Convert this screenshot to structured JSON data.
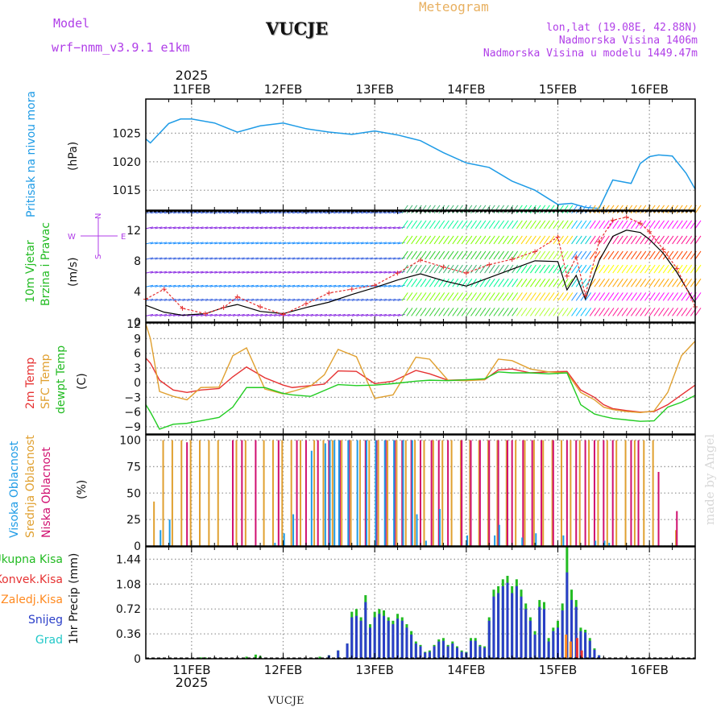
{
  "header": {
    "model_label": "Model",
    "model_name": "wrf−nmm_v3.9.1  e1km",
    "station": "VUCJE",
    "product": "Meteogram",
    "coords": "lon,lat (19.08E, 42.88N)",
    "elevation": "Nadmorska Visina 1406m",
    "model_elevation": "Nadmorska Visina u modelu 1449.47m",
    "footer_station": "VUCJE",
    "watermark": "made by Angel"
  },
  "time_axis": {
    "year": "2025",
    "day_labels": [
      "11FEB",
      "12FEB",
      "13FEB",
      "14FEB",
      "15FEB",
      "16FEB"
    ]
  },
  "panels": {
    "pressure": {
      "ylabel_name": "Pritisak na nivou mora",
      "unit": "(hPa)",
      "ticks": [
        "1015",
        "1020",
        "1025"
      ]
    },
    "wind": {
      "ylabel_name1": "10m Vjetar",
      "ylabel_name2": "Brzina i Pravac",
      "unit": "(m/s)",
      "ticks": [
        "0",
        "4",
        "8",
        "12"
      ],
      "compass_n": "N",
      "compass_s": "S",
      "compass_w": "W",
      "compass_e": "E"
    },
    "temp": {
      "label_2m": "2m Temp",
      "label_sfc": "SFC Temp",
      "label_dewpt": "dewpt Temp",
      "unit": "(C)",
      "ticks": [
        "12",
        "9",
        "6",
        "3",
        "0",
        "−3",
        "−6",
        "−9"
      ]
    },
    "cloud": {
      "label_high": "Visoka Oblacnost",
      "label_mid": "Srednja Oblacnost",
      "label_low": "Niska Oblacnost",
      "unit": "(%)",
      "ticks": [
        "0",
        "25",
        "50",
        "75",
        "100"
      ]
    },
    "precip": {
      "label_total": "Ukupna Kisa",
      "label_conv": "Konvek.Kisa",
      "label_frz": "Zaledj.Kisa",
      "label_snow": "Snijeg",
      "label_hail": "Grad",
      "ylabel": "1hr Precip (mm)",
      "ticks": [
        "0",
        "0.36",
        "0.72",
        "1.08",
        "1.44"
      ]
    }
  },
  "colors": {
    "pressure": "#1e9be6",
    "wind_speed": "#000000",
    "gust": "#e63232",
    "t2m": "#e63232",
    "tsfc": "#e0a030",
    "dewpt": "#22cc22",
    "cloud_high": "#1e9be6",
    "cloud_mid": "#e0a030",
    "cloud_low": "#d01070",
    "precip_total": "#22bb22",
    "precip_conv": "#e63232",
    "precip_frz": "#ff8a20",
    "precip_snow": "#2a3ec8",
    "precip_hail": "#22c8c8",
    "model_text": "#b03ee8",
    "meteogram_text": "#e8b060"
  },
  "chart_data": [
    {
      "type": "line",
      "title": "Pritisak na nivou mora",
      "ylabel": "(hPa)",
      "ylim": [
        1011.5,
        1031
      ],
      "xlim_days_from_11FEB": [
        -0.5,
        5.5
      ],
      "x": [
        -0.5,
        -0.45,
        -0.38,
        -0.25,
        -0.12,
        0,
        0.25,
        0.5,
        0.75,
        1,
        1.25,
        1.5,
        1.75,
        2,
        2.25,
        2.5,
        2.75,
        3,
        3.25,
        3.5,
        3.75,
        4,
        4.15,
        4.3,
        4.45,
        4.6,
        4.7,
        4.8,
        4.9,
        5,
        5.1,
        5.25,
        5.4,
        5.5
      ],
      "values": [
        1024,
        1023.3,
        1024.5,
        1026.7,
        1027.5,
        1027.5,
        1026.8,
        1025.2,
        1026.3,
        1026.8,
        1025.8,
        1025.2,
        1024.8,
        1025.4,
        1024.7,
        1023.7,
        1021.6,
        1019.8,
        1019.0,
        1016.6,
        1015.0,
        1012.5,
        1012.7,
        1012.0,
        1011.8,
        1016.8,
        1016.5,
        1016.2,
        1019.7,
        1020.9,
        1021.2,
        1021.0,
        1018.0,
        1015.2
      ],
      "grid": true
    },
    {
      "type": "line",
      "title": "10m Vjetar",
      "ylabel": "(m/s)",
      "ylim": [
        0,
        14.5
      ],
      "x": [
        -0.5,
        -0.3,
        -0.1,
        0.15,
        0.35,
        0.5,
        0.75,
        1,
        1.25,
        1.5,
        1.75,
        2,
        2.25,
        2.5,
        2.75,
        3,
        3.25,
        3.5,
        3.75,
        4,
        4.1,
        4.2,
        4.3,
        4.45,
        4.6,
        4.75,
        4.9,
        5,
        5.15,
        5.3,
        5.5
      ],
      "series": [
        {
          "values": [
            2.2,
            1.3,
            0.9,
            1.1,
            1.9,
            2.3,
            1.4,
            1.1,
            1.9,
            2.6,
            3.6,
            4.5,
            5.5,
            6.3,
            5.4,
            4.7,
            5.8,
            6.9,
            8.0,
            7.9,
            4.2,
            6.1,
            3.0,
            8.0,
            11.2,
            12.0,
            11.7,
            10.8,
            9.0,
            6.5,
            2.5
          ]
        },
        {
          "values": [
            3.0,
            4.3,
            1.8,
            1.1,
            1.9,
            3.3,
            2.0,
            1.0,
            2.4,
            3.8,
            4.3,
            4.8,
            6.4,
            8.1,
            7.2,
            6.4,
            7.5,
            8.2,
            9.2,
            11.1,
            6.0,
            8.5,
            3.5,
            10.5,
            13.3,
            13.7,
            12.9,
            11.8,
            9.5,
            7.0,
            2.0
          ]
        }
      ]
    },
    {
      "type": "line",
      "title": "Temp",
      "ylabel": "(C)",
      "ylim": [
        -10.5,
        12.2
      ],
      "x": [
        -0.5,
        -0.45,
        -0.35,
        -0.2,
        -0.05,
        0.1,
        0.3,
        0.45,
        0.6,
        0.8,
        1.0,
        1.1,
        1.3,
        1.45,
        1.6,
        1.8,
        2.0,
        2.2,
        2.45,
        2.6,
        2.8,
        3.0,
        3.2,
        3.35,
        3.5,
        3.7,
        3.9,
        4.1,
        4.25,
        4.4,
        4.5,
        4.6,
        4.75,
        4.9,
        5.05,
        5.2,
        5.35,
        5.5
      ],
      "series": [
        {
          "values": [
            5,
            4,
            0.5,
            -1.5,
            -2,
            -1.5,
            -1.2,
            1.2,
            3.2,
            1,
            -0.5,
            -1,
            -0.6,
            -0.3,
            2.4,
            2.3,
            -0.2,
            0.3,
            2.5,
            1.8,
            0.5,
            0.6,
            0.6,
            2.6,
            2.8,
            2.0,
            2.2,
            2.3,
            -1.5,
            -3,
            -4.5,
            -5.3,
            -5.7,
            -6.0,
            -5.9,
            -4.5,
            -2.5,
            -0.5
          ]
        },
        {
          "values": [
            12,
            9,
            -1.8,
            -2.8,
            -3.5,
            -1,
            -0.9,
            5.5,
            7.1,
            -1.3,
            -2.3,
            -1.8,
            -0.7,
            1.6,
            6.8,
            5.3,
            -3.2,
            -2.5,
            5.2,
            4.8,
            0.5,
            0.4,
            0.6,
            4.8,
            4.5,
            2.8,
            2.2,
            2.0,
            -2.0,
            -3.5,
            -5.0,
            -5.5,
            -5.9,
            -6.1,
            -5.8,
            -2.0,
            5.5,
            8.5
          ]
        },
        {
          "values": [
            -4.5,
            -6,
            -9.5,
            -8.5,
            -8.3,
            -7.8,
            -7.1,
            -5,
            -1.0,
            -1,
            -2.2,
            -2.5,
            -2.8,
            -1.6,
            -0.4,
            -0.6,
            -0.5,
            -0.2,
            0.3,
            0.5,
            0.4,
            0.6,
            0.8,
            2.2,
            2.0,
            2.0,
            1.8,
            2.0,
            -4.5,
            -6.4,
            -6.9,
            -7.3,
            -7.6,
            -7.9,
            -7.8,
            -5.0,
            -4.0,
            -2.6
          ]
        }
      ]
    },
    {
      "type": "bar",
      "title": "Oblacnost",
      "ylabel": "(%)",
      "ylim": [
        0,
        105
      ],
      "series": [
        {
          "x": [
            -0.35,
            -0.25,
            0.9,
            1.0,
            1.1,
            1.3,
            1.45,
            1.5,
            1.55,
            1.6,
            1.7,
            1.8,
            1.9,
            2.0,
            2.1,
            2.2,
            2.3,
            2.4,
            2.45,
            2.55,
            2.7,
            3.0,
            3.3,
            3.35,
            3.6,
            3.75,
            4.05,
            4.4,
            4.5,
            4.55
          ],
          "values": [
            15,
            25,
            3,
            12,
            30,
            90,
            97,
            100,
            100,
            100,
            100,
            100,
            100,
            100,
            100,
            100,
            100,
            100,
            30,
            5,
            35,
            10,
            10,
            20,
            8,
            12,
            10,
            5,
            5,
            3
          ]
        },
        {
          "x": [
            -0.4,
            -0.3,
            -0.2,
            -0.1,
            0,
            0.1,
            0.2,
            0.3,
            0.5,
            0.6,
            0.8,
            0.9,
            1.0,
            1.1,
            1.2,
            1.35,
            1.45,
            1.55,
            1.65,
            1.75,
            1.85,
            1.95,
            2.05,
            2.15,
            2.25,
            2.35,
            2.45,
            2.55,
            2.65,
            2.75,
            2.85,
            2.95,
            3.05,
            3.15,
            3.25,
            3.35,
            3.45,
            3.55,
            3.65,
            3.75,
            3.85,
            3.95,
            4.05,
            4.15,
            4.25,
            4.35,
            4.45,
            4.55,
            4.65,
            4.75,
            4.85,
            4.95,
            5.05,
            5.3
          ],
          "values": [
            42,
            100,
            100,
            100,
            100,
            100,
            100,
            100,
            100,
            100,
            100,
            100,
            100,
            100,
            100,
            100,
            100,
            100,
            100,
            100,
            100,
            100,
            100,
            100,
            100,
            100,
            100,
            100,
            100,
            100,
            100,
            100,
            100,
            100,
            100,
            100,
            100,
            100,
            100,
            100,
            100,
            100,
            100,
            100,
            100,
            100,
            100,
            100,
            100,
            100,
            100,
            100,
            100,
            15
          ]
        },
        {
          "x": [
            -0.05,
            0.45,
            0.55,
            0.7,
            0.95,
            1.15,
            1.25,
            1.38,
            1.5,
            1.62,
            1.72,
            1.9,
            2.02,
            2.12,
            2.22,
            2.3,
            2.4,
            2.5,
            2.62,
            2.7,
            2.8,
            2.95,
            3.05,
            3.15,
            3.25,
            3.35,
            3.45,
            3.5,
            3.62,
            3.72,
            3.82,
            3.95,
            4.1,
            4.2,
            4.3,
            4.4,
            4.5,
            4.6,
            4.8,
            4.88,
            5.1,
            5.3
          ],
          "values": [
            98,
            100,
            100,
            100,
            100,
            100,
            100,
            100,
            100,
            100,
            100,
            100,
            100,
            100,
            100,
            100,
            100,
            100,
            100,
            100,
            100,
            100,
            100,
            100,
            100,
            100,
            100,
            100,
            100,
            100,
            100,
            100,
            100,
            100,
            100,
            100,
            100,
            100,
            100,
            100,
            70,
            33
          ]
        }
      ]
    },
    {
      "type": "bar",
      "title": "1hr Precip",
      "ylabel": "1hr Precip (mm)",
      "ylim": [
        0,
        1.62
      ],
      "series": [
        {
          "x": [
            0.1,
            0.15,
            0.6,
            0.7,
            0.75,
            1.4,
            1.5,
            1.6,
            1.7,
            1.75,
            1.8,
            1.85,
            1.9,
            1.95,
            2.0,
            2.05,
            2.1,
            2.15,
            2.2,
            2.25,
            2.3,
            2.35,
            2.4,
            2.45,
            2.5,
            2.55,
            2.6,
            2.65,
            2.7,
            2.75,
            2.8,
            2.85,
            2.9,
            2.95,
            3.0,
            3.05,
            3.1,
            3.15,
            3.2,
            3.25,
            3.3,
            3.35,
            3.4,
            3.45,
            3.5,
            3.55,
            3.6,
            3.65,
            3.7,
            3.75,
            3.8,
            3.85,
            3.9,
            3.95,
            4.0,
            4.05,
            4.1,
            4.15,
            4.2,
            4.25,
            4.3,
            4.35,
            4.4,
            4.45
          ],
          "values": [
            0.02,
            0.02,
            0.03,
            0.06,
            0.04,
            0.03,
            0.05,
            0.12,
            0.22,
            0.68,
            0.72,
            0.6,
            0.92,
            0.5,
            0.68,
            0.72,
            0.7,
            0.6,
            0.55,
            0.65,
            0.6,
            0.5,
            0.4,
            0.25,
            0.2,
            0.1,
            0.12,
            0.2,
            0.28,
            0.3,
            0.2,
            0.25,
            0.18,
            0.12,
            0.1,
            0.3,
            0.3,
            0.2,
            0.18,
            0.6,
            1.0,
            1.05,
            1.15,
            1.2,
            1.05,
            1.15,
            1.0,
            0.8,
            0.6,
            0.4,
            0.85,
            0.82,
            0.3,
            0.45,
            0.55,
            0.8,
            1.62,
            1.0,
            0.85,
            0.45,
            0.42,
            0.3,
            0.15,
            0.05
          ]
        },
        {
          "x": [
            4.2,
            4.25
          ],
          "values": [
            0.3,
            0.12
          ]
        },
        {
          "x": [
            4.1,
            4.15
          ],
          "values": [
            0.35,
            0.25
          ]
        },
        {
          "x": [
            1.5,
            1.6,
            1.7,
            1.75,
            1.8,
            1.85,
            1.9,
            1.95,
            2.0,
            2.05,
            2.1,
            2.15,
            2.2,
            2.25,
            2.3,
            2.35,
            2.4,
            2.45,
            2.5,
            2.55,
            2.6,
            2.65,
            2.7,
            2.75,
            2.8,
            2.85,
            2.9,
            2.95,
            3.0,
            3.05,
            3.1,
            3.15,
            3.2,
            3.25,
            3.3,
            3.35,
            3.4,
            3.45,
            3.5,
            3.55,
            3.6,
            3.65,
            3.7,
            3.75,
            3.8,
            3.85,
            3.9,
            3.95,
            4.0,
            4.05,
            4.1,
            4.15,
            4.2,
            4.25,
            4.3,
            4.35,
            4.4,
            4.45
          ],
          "values": [
            0.05,
            0.12,
            0.22,
            0.6,
            0.62,
            0.55,
            0.82,
            0.45,
            0.6,
            0.65,
            0.62,
            0.55,
            0.5,
            0.58,
            0.55,
            0.45,
            0.35,
            0.22,
            0.18,
            0.09,
            0.1,
            0.18,
            0.25,
            0.26,
            0.18,
            0.22,
            0.16,
            0.1,
            0.09,
            0.26,
            0.26,
            0.18,
            0.16,
            0.55,
            0.9,
            0.95,
            1.05,
            1.1,
            0.95,
            1.05,
            0.9,
            0.72,
            0.55,
            0.35,
            0.75,
            0.72,
            0.25,
            0.4,
            0.45,
            0.7,
            1.25,
            0.85,
            0.75,
            0.4,
            0.38,
            0.26,
            0.13,
            0.05
          ]
        },
        {
          "x": [],
          "values": []
        }
      ]
    }
  ]
}
